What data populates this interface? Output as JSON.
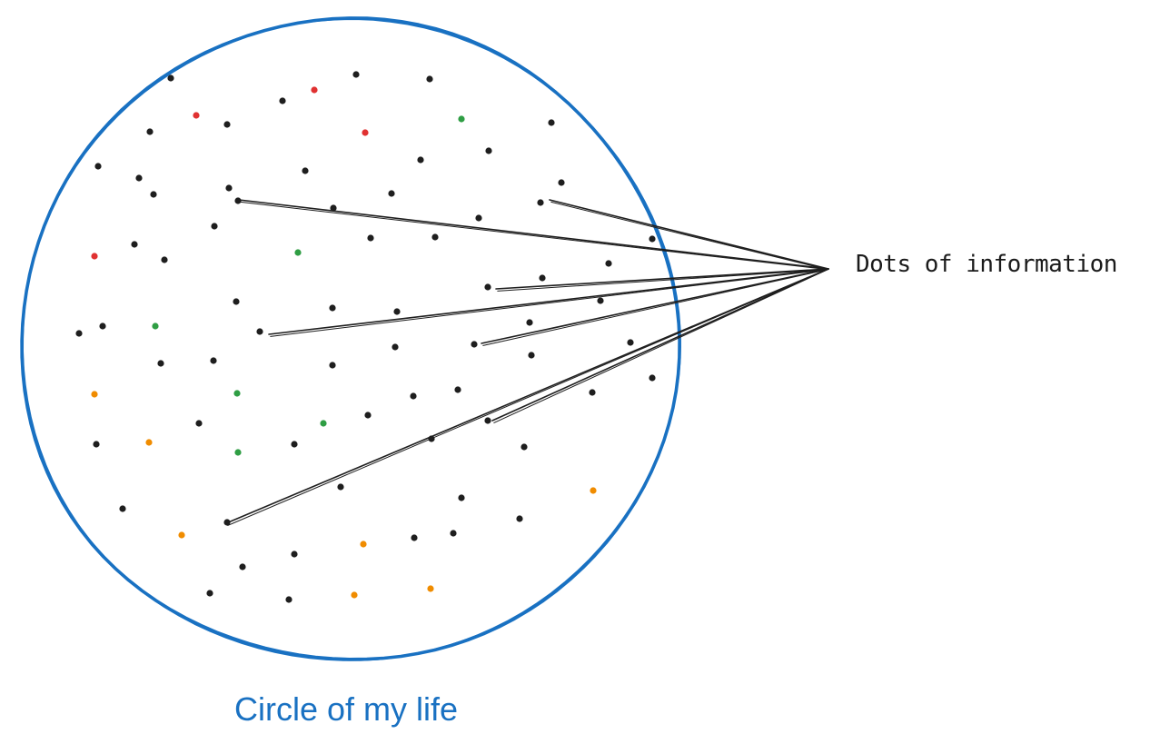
{
  "labels": {
    "dots_label": "Dots of information",
    "circle_label": "Circle of my life"
  },
  "colors": {
    "circle_stroke": "#1971c2",
    "circle_label": "#1971c2",
    "line_stroke": "#1e1e1e",
    "dot_black": "#1e1e1e",
    "dot_red": "#e03131",
    "dot_green": "#2f9e44",
    "dot_orange": "#f08c00"
  },
  "dots": [
    {
      "color": "black"
    },
    {
      "color": "black"
    },
    {
      "color": "black"
    },
    {
      "color": "red"
    },
    {
      "color": "black"
    },
    {
      "color": "red"
    },
    {
      "color": "black"
    },
    {
      "color": "red"
    },
    {
      "color": "green"
    },
    {
      "color": "black"
    },
    {
      "color": "black"
    },
    {
      "color": "black"
    },
    {
      "color": "black"
    },
    {
      "color": "black"
    },
    {
      "color": "black"
    },
    {
      "color": "black"
    },
    {
      "color": "black"
    },
    {
      "color": "black"
    },
    {
      "color": "black"
    },
    {
      "color": "black"
    },
    {
      "color": "black"
    },
    {
      "color": "black"
    },
    {
      "color": "black"
    },
    {
      "color": "black"
    },
    {
      "color": "black"
    },
    {
      "color": "red"
    },
    {
      "color": "black"
    },
    {
      "color": "black"
    },
    {
      "color": "green"
    },
    {
      "color": "black"
    },
    {
      "color": "black"
    },
    {
      "color": "black"
    },
    {
      "color": "black"
    },
    {
      "color": "black"
    },
    {
      "color": "black"
    },
    {
      "color": "black"
    },
    {
      "color": "black"
    },
    {
      "color": "black"
    },
    {
      "color": "green"
    },
    {
      "color": "black"
    },
    {
      "color": "black"
    },
    {
      "color": "black"
    },
    {
      "color": "black"
    },
    {
      "color": "black"
    },
    {
      "color": "black"
    },
    {
      "color": "black"
    },
    {
      "color": "black"
    },
    {
      "color": "black"
    },
    {
      "color": "black"
    },
    {
      "color": "black"
    },
    {
      "color": "orange"
    },
    {
      "color": "green"
    },
    {
      "color": "black"
    },
    {
      "color": "black"
    },
    {
      "color": "black"
    },
    {
      "color": "black"
    },
    {
      "color": "green"
    },
    {
      "color": "black"
    },
    {
      "color": "black"
    },
    {
      "color": "orange"
    },
    {
      "color": "green"
    },
    {
      "color": "black"
    },
    {
      "color": "black"
    },
    {
      "color": "black"
    },
    {
      "color": "black"
    },
    {
      "color": "black"
    },
    {
      "color": "black"
    },
    {
      "color": "orange"
    },
    {
      "color": "black"
    },
    {
      "color": "black"
    },
    {
      "color": "orange"
    },
    {
      "color": "black"
    },
    {
      "color": "black"
    },
    {
      "color": "black"
    },
    {
      "color": "orange"
    },
    {
      "color": "black"
    },
    {
      "color": "black"
    },
    {
      "color": "black"
    },
    {
      "color": "orange"
    },
    {
      "color": "orange"
    }
  ],
  "connectors": [
    {
      "from": "dot-a"
    },
    {
      "from": "dot-b"
    },
    {
      "from": "dot-c"
    },
    {
      "from": "dot-d"
    },
    {
      "from": "dot-e"
    },
    {
      "from": "dot-f"
    },
    {
      "from": "dot-g"
    }
  ]
}
